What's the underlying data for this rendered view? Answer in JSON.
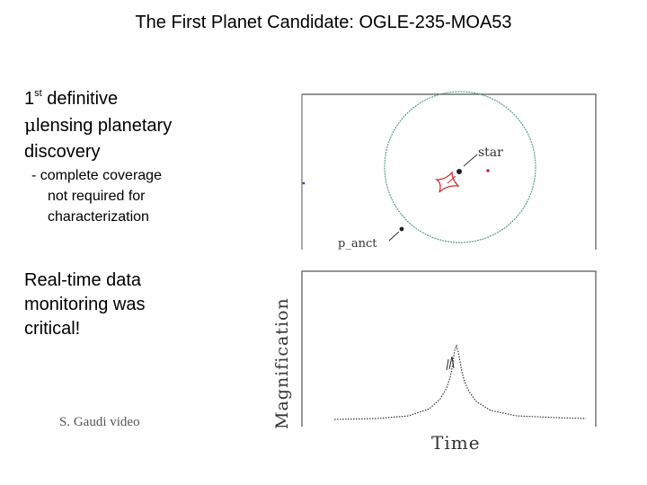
{
  "slide": {
    "title": "The First Planet Candidate: OGLE-235-MOA53",
    "bullet1": {
      "number": "1",
      "superscript": "st",
      "after_superscript": " definitive",
      "mu": "μ",
      "line2_rest": "lensing planetary",
      "line3": "discovery"
    },
    "sub_bullet": {
      "line1": "- complete coverage",
      "line2": "not required for",
      "line3": "characterization"
    },
    "bullet2": {
      "line1": "Real-time data",
      "line2": "monitoring was",
      "line3": "critical!"
    },
    "credit": "S. Gaudi video"
  },
  "figure": {
    "star_label": "star",
    "planet_label": "p_anct",
    "y_axis_label": "Magnification",
    "x_axis_label": "Time",
    "colors": {
      "circle": "#3e8a70",
      "caustic": "#d92b2b",
      "star_dot": "#c00050",
      "frame": "#555555",
      "curve": "#222222"
    }
  }
}
